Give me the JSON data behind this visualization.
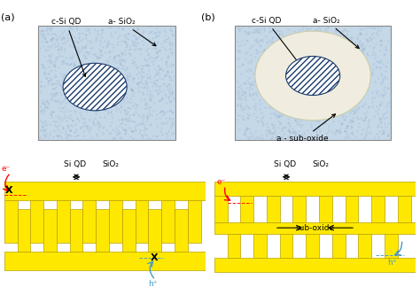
{
  "bg_color": "#ffffff",
  "yellow": "#FFE800",
  "edge_color": "#b8a000",
  "light_blue": "#c5d8e8",
  "dot_blue": "#8aafc5",
  "white_ring": "#f0ede0",
  "hatch_color": "#1a3a6b",
  "panel_a_label": "(a)",
  "panel_b_label": "(b)",
  "label_csiQD": "c-Si QD",
  "label_aSiO2": "a- SiO₂",
  "label_suboxide_b": "a - sub-oxide",
  "label_SiQD": "Si QD",
  "label_SiO2": "SiO₂",
  "label_sub_oxide": "sub-oxide",
  "label_eminus": "e⁻",
  "label_hplus": "h⁺"
}
